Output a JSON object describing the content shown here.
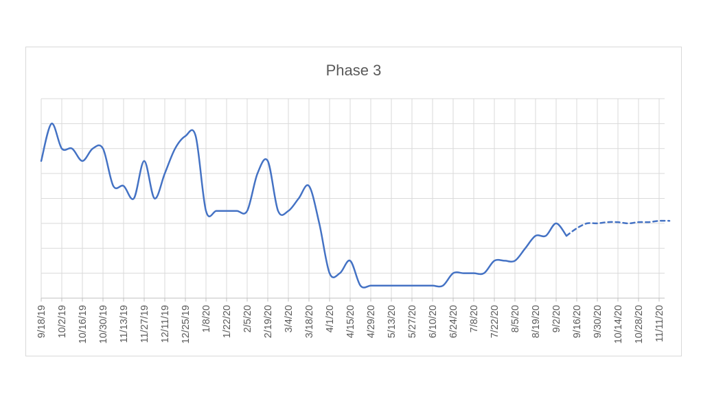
{
  "chart_data": {
    "type": "line",
    "title": "Phase 3",
    "xlabel": "",
    "ylabel": "",
    "y_tick_labels_shown": false,
    "ylim": [
      0,
      8
    ],
    "grid": true,
    "legend": "none",
    "colors": {
      "line": "#4472c4",
      "grid": "#d9d9d9",
      "axis": "#bfbfbf",
      "text": "#595959"
    },
    "categories": [
      "9/18/19",
      "10/2/19",
      "10/16/19",
      "10/30/19",
      "11/13/19",
      "11/27/19",
      "12/11/19",
      "12/25/19",
      "1/8/20",
      "1/22/20",
      "2/5/20",
      "2/19/20",
      "3/4/20",
      "3/18/20",
      "4/1/20",
      "4/15/20",
      "4/29/20",
      "5/13/20",
      "5/27/20",
      "6/10/20",
      "6/24/20",
      "7/8/20",
      "7/22/20",
      "8/5/20",
      "8/19/20",
      "9/2/20",
      "9/16/20",
      "9/30/20",
      "10/14/20",
      "10/28/20",
      "11/11/20"
    ],
    "series": [
      {
        "style": "solid",
        "points": [
          [
            "9/18/19",
            5.5
          ],
          [
            "9/25/19",
            7.0
          ],
          [
            "10/2/19",
            6.0
          ],
          [
            "10/9/19",
            6.0
          ],
          [
            "10/16/19",
            5.5
          ],
          [
            "10/23/19",
            6.0
          ],
          [
            "10/30/19",
            6.0
          ],
          [
            "11/6/19",
            4.5
          ],
          [
            "11/13/19",
            4.5
          ],
          [
            "11/20/19",
            4.0
          ],
          [
            "11/27/19",
            5.5
          ],
          [
            "12/4/19",
            4.0
          ],
          [
            "12/11/19",
            5.0
          ],
          [
            "12/18/19",
            6.0
          ],
          [
            "12/25/19",
            6.5
          ],
          [
            "1/1/20",
            6.5
          ],
          [
            "1/8/20",
            3.5
          ],
          [
            "1/15/20",
            3.5
          ],
          [
            "1/22/20",
            3.5
          ],
          [
            "1/29/20",
            3.5
          ],
          [
            "2/5/20",
            3.5
          ],
          [
            "2/12/20",
            5.0
          ],
          [
            "2/19/20",
            5.5
          ],
          [
            "2/26/20",
            3.5
          ],
          [
            "3/4/20",
            3.5
          ],
          [
            "3/11/20",
            4.0
          ],
          [
            "3/18/20",
            4.5
          ],
          [
            "3/25/20",
            3.0
          ],
          [
            "4/1/20",
            1.0
          ],
          [
            "4/8/20",
            1.0
          ],
          [
            "4/15/20",
            1.5
          ],
          [
            "4/22/20",
            0.5
          ],
          [
            "4/29/20",
            0.5
          ],
          [
            "5/6/20",
            0.5
          ],
          [
            "5/13/20",
            0.5
          ],
          [
            "5/20/20",
            0.5
          ],
          [
            "5/27/20",
            0.5
          ],
          [
            "6/3/20",
            0.5
          ],
          [
            "6/10/20",
            0.5
          ],
          [
            "6/17/20",
            0.5
          ],
          [
            "6/24/20",
            1.0
          ],
          [
            "7/1/20",
            1.0
          ],
          [
            "7/8/20",
            1.0
          ],
          [
            "7/15/20",
            1.0
          ],
          [
            "7/22/20",
            1.5
          ],
          [
            "7/29/20",
            1.5
          ],
          [
            "8/5/20",
            1.5
          ],
          [
            "8/12/20",
            2.0
          ],
          [
            "8/19/20",
            2.5
          ],
          [
            "8/26/20",
            2.5
          ],
          [
            "9/2/20",
            3.0
          ],
          [
            "9/9/20",
            2.5
          ]
        ]
      },
      {
        "style": "dashed",
        "points": [
          [
            "9/9/20",
            2.5
          ],
          [
            "9/16/20",
            2.8
          ],
          [
            "9/23/20",
            3.0
          ],
          [
            "9/30/20",
            3.0
          ],
          [
            "10/7/20",
            3.05
          ],
          [
            "10/14/20",
            3.05
          ],
          [
            "10/21/20",
            3.0
          ],
          [
            "10/28/20",
            3.05
          ],
          [
            "11/4/20",
            3.05
          ],
          [
            "11/11/20",
            3.1
          ],
          [
            "11/18/20",
            3.1
          ]
        ]
      }
    ]
  }
}
